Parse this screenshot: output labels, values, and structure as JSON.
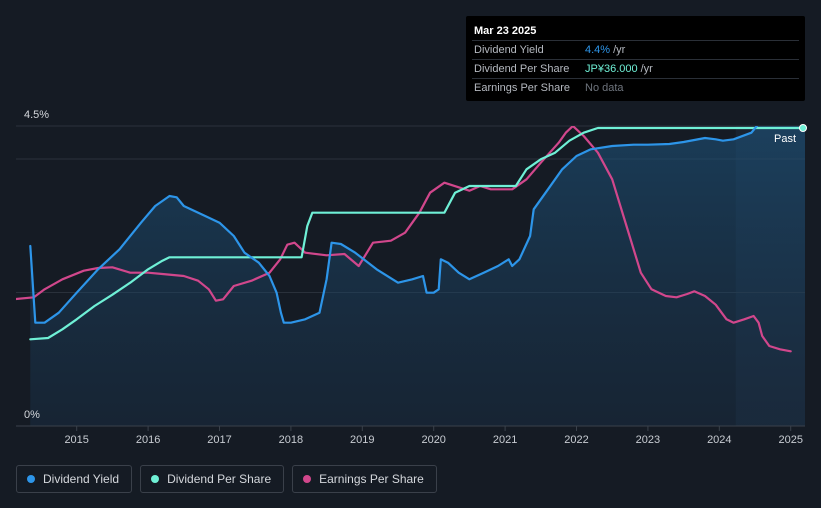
{
  "colors": {
    "background": "#151b24",
    "dividend_yield": "#2d95e9",
    "dividend_per_share": "#6ff0d6",
    "earnings_per_share": "#d1478c"
  },
  "tooltip": {
    "date": "Mar 23 2025",
    "rows": [
      {
        "label": "Dividend Yield",
        "value": "4.4%",
        "unit": "/yr"
      },
      {
        "label": "Dividend Per Share",
        "value": "JP¥36.000",
        "unit": "/yr"
      },
      {
        "label": "Earnings Per Share",
        "value": "No data",
        "unit": ""
      }
    ]
  },
  "legend": [
    {
      "label": "Dividend Yield"
    },
    {
      "label": "Dividend Per Share"
    },
    {
      "label": "Earnings Per Share"
    }
  ],
  "chart_data": {
    "type": "line",
    "title": "",
    "xlabel": "",
    "ylabel": "",
    "ylim": [
      0,
      4.5
    ],
    "y_tick_labels": [
      "4.5%",
      "0%"
    ],
    "x_tick_labels": [
      "2015",
      "2016",
      "2017",
      "2018",
      "2019",
      "2020",
      "2021",
      "2022",
      "2023",
      "2024",
      "2025"
    ],
    "xlim": [
      2014.15,
      2025.2
    ],
    "past_label": "Past",
    "past_region_start": 2024.23,
    "series": [
      {
        "name": "Dividend Yield",
        "points": [
          [
            2014.35,
            2.7
          ],
          [
            2014.42,
            1.55
          ],
          [
            2014.55,
            1.55
          ],
          [
            2014.75,
            1.7
          ],
          [
            2015.0,
            2.0
          ],
          [
            2015.3,
            2.35
          ],
          [
            2015.6,
            2.65
          ],
          [
            2015.9,
            3.05
          ],
          [
            2016.1,
            3.3
          ],
          [
            2016.3,
            3.45
          ],
          [
            2016.4,
            3.43
          ],
          [
            2016.5,
            3.3
          ],
          [
            2016.8,
            3.15
          ],
          [
            2017.0,
            3.05
          ],
          [
            2017.2,
            2.85
          ],
          [
            2017.35,
            2.6
          ],
          [
            2017.55,
            2.45
          ],
          [
            2017.7,
            2.25
          ],
          [
            2017.8,
            2.0
          ],
          [
            2017.86,
            1.7
          ],
          [
            2017.9,
            1.55
          ],
          [
            2018.0,
            1.55
          ],
          [
            2018.2,
            1.6
          ],
          [
            2018.4,
            1.7
          ],
          [
            2018.5,
            2.2
          ],
          [
            2018.57,
            2.75
          ],
          [
            2018.7,
            2.73
          ],
          [
            2018.9,
            2.6
          ],
          [
            2019.2,
            2.35
          ],
          [
            2019.5,
            2.15
          ],
          [
            2019.7,
            2.2
          ],
          [
            2019.85,
            2.25
          ],
          [
            2019.9,
            2.0
          ],
          [
            2020.0,
            2.0
          ],
          [
            2020.07,
            2.05
          ],
          [
            2020.1,
            2.5
          ],
          [
            2020.2,
            2.45
          ],
          [
            2020.35,
            2.3
          ],
          [
            2020.5,
            2.2
          ],
          [
            2020.7,
            2.3
          ],
          [
            2020.9,
            2.4
          ],
          [
            2021.05,
            2.5
          ],
          [
            2021.1,
            2.4
          ],
          [
            2021.2,
            2.5
          ],
          [
            2021.35,
            2.85
          ],
          [
            2021.4,
            3.25
          ],
          [
            2021.6,
            3.55
          ],
          [
            2021.8,
            3.85
          ],
          [
            2022.0,
            4.05
          ],
          [
            2022.2,
            4.15
          ],
          [
            2022.5,
            4.2
          ],
          [
            2022.8,
            4.22
          ],
          [
            2023.0,
            4.22
          ],
          [
            2023.3,
            4.23
          ],
          [
            2023.5,
            4.26
          ],
          [
            2023.8,
            4.32
          ],
          [
            2023.95,
            4.3
          ],
          [
            2024.05,
            4.28
          ],
          [
            2024.2,
            4.3
          ],
          [
            2024.45,
            4.4
          ],
          [
            2024.6,
            4.6
          ],
          [
            2024.75,
            4.7
          ],
          [
            2025.0,
            4.72
          ],
          [
            2025.2,
            4.72
          ]
        ]
      },
      {
        "name": "Dividend Per Share",
        "points": [
          [
            2014.35,
            1.3
          ],
          [
            2014.6,
            1.32
          ],
          [
            2014.8,
            1.45
          ],
          [
            2015.0,
            1.6
          ],
          [
            2015.25,
            1.8
          ],
          [
            2015.5,
            1.97
          ],
          [
            2015.75,
            2.15
          ],
          [
            2016.0,
            2.35
          ],
          [
            2016.2,
            2.48
          ],
          [
            2016.3,
            2.53
          ],
          [
            2017.0,
            2.53
          ],
          [
            2017.5,
            2.53
          ],
          [
            2018.15,
            2.53
          ],
          [
            2018.23,
            3.0
          ],
          [
            2018.3,
            3.2
          ],
          [
            2019.3,
            3.2
          ],
          [
            2020.15,
            3.2
          ],
          [
            2020.3,
            3.5
          ],
          [
            2020.5,
            3.6
          ],
          [
            2021.15,
            3.6
          ],
          [
            2021.3,
            3.85
          ],
          [
            2021.5,
            4.0
          ],
          [
            2021.7,
            4.1
          ],
          [
            2021.9,
            4.28
          ],
          [
            2022.1,
            4.4
          ],
          [
            2022.3,
            4.47
          ],
          [
            2023.0,
            4.47
          ],
          [
            2024.0,
            4.47
          ],
          [
            2025.2,
            4.47
          ]
        ]
      },
      {
        "name": "Earnings Per Share",
        "points": [
          [
            2014.1,
            1.9
          ],
          [
            2014.4,
            1.93
          ],
          [
            2014.55,
            2.05
          ],
          [
            2014.8,
            2.2
          ],
          [
            2015.1,
            2.33
          ],
          [
            2015.3,
            2.37
          ],
          [
            2015.5,
            2.38
          ],
          [
            2015.75,
            2.3
          ],
          [
            2016.0,
            2.3
          ],
          [
            2016.2,
            2.28
          ],
          [
            2016.5,
            2.25
          ],
          [
            2016.7,
            2.18
          ],
          [
            2016.85,
            2.05
          ],
          [
            2016.95,
            1.88
          ],
          [
            2017.05,
            1.9
          ],
          [
            2017.2,
            2.1
          ],
          [
            2017.45,
            2.18
          ],
          [
            2017.7,
            2.3
          ],
          [
            2017.85,
            2.5
          ],
          [
            2017.95,
            2.72
          ],
          [
            2018.05,
            2.75
          ],
          [
            2018.2,
            2.6
          ],
          [
            2018.5,
            2.56
          ],
          [
            2018.75,
            2.58
          ],
          [
            2018.95,
            2.4
          ],
          [
            2019.15,
            2.75
          ],
          [
            2019.4,
            2.78
          ],
          [
            2019.6,
            2.9
          ],
          [
            2019.8,
            3.2
          ],
          [
            2019.95,
            3.5
          ],
          [
            2020.15,
            3.65
          ],
          [
            2020.35,
            3.58
          ],
          [
            2020.5,
            3.53
          ],
          [
            2020.65,
            3.6
          ],
          [
            2020.8,
            3.55
          ],
          [
            2021.1,
            3.55
          ],
          [
            2021.3,
            3.7
          ],
          [
            2021.5,
            3.95
          ],
          [
            2021.75,
            4.25
          ],
          [
            2021.85,
            4.4
          ],
          [
            2021.95,
            4.5
          ],
          [
            2022.1,
            4.35
          ],
          [
            2022.3,
            4.1
          ],
          [
            2022.5,
            3.7
          ],
          [
            2022.7,
            3.0
          ],
          [
            2022.9,
            2.3
          ],
          [
            2023.05,
            2.05
          ],
          [
            2023.25,
            1.95
          ],
          [
            2023.4,
            1.93
          ],
          [
            2023.55,
            1.98
          ],
          [
            2023.65,
            2.02
          ],
          [
            2023.8,
            1.95
          ],
          [
            2023.95,
            1.82
          ],
          [
            2024.1,
            1.6
          ],
          [
            2024.2,
            1.55
          ],
          [
            2024.35,
            1.6
          ],
          [
            2024.48,
            1.65
          ],
          [
            2024.55,
            1.55
          ],
          [
            2024.6,
            1.35
          ],
          [
            2024.7,
            1.2
          ],
          [
            2024.85,
            1.15
          ],
          [
            2025.0,
            1.12
          ]
        ]
      }
    ]
  }
}
